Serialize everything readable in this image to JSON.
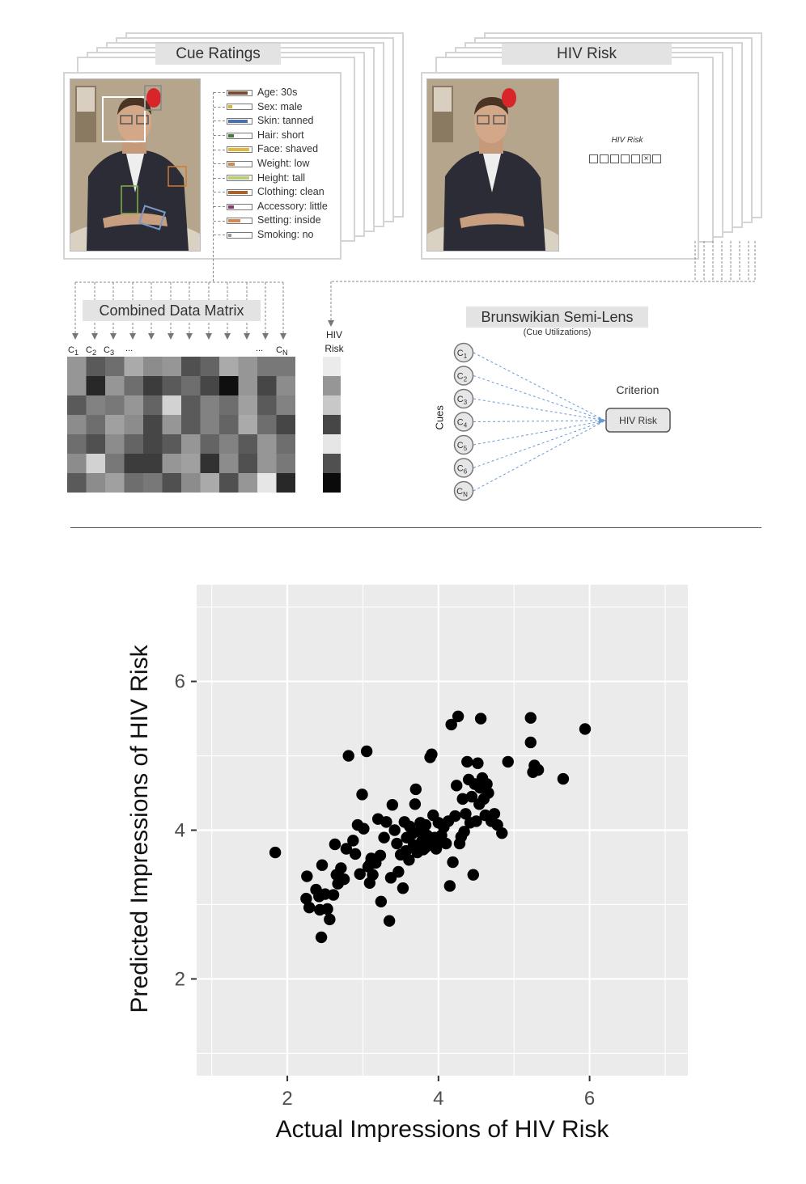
{
  "cue_ratings": {
    "title": "Cue Ratings",
    "cues": [
      {
        "label": "Age: 30s",
        "color": "#7a4a2a",
        "fill": 0.9
      },
      {
        "label": "Sex: male",
        "color": "#d8b23a",
        "fill": 0.2
      },
      {
        "label": "Skin: tanned",
        "color": "#4a6fae",
        "fill": 0.9
      },
      {
        "label": "Hair: short",
        "color": "#3f7a3a",
        "fill": 0.25
      },
      {
        "label": "Face: shaved",
        "color": "#e0b83a",
        "fill": 0.95
      },
      {
        "label": "Weight: low",
        "color": "#d48a4a",
        "fill": 0.3
      },
      {
        "label": "Height: tall",
        "color": "#b8cc7a",
        "fill": 0.95
      },
      {
        "label": "Clothing: clean",
        "color": "#a8622a",
        "fill": 0.9
      },
      {
        "label": "Accessory: little",
        "color": "#8a3a6a",
        "fill": 0.25
      },
      {
        "label": "Setting: inside",
        "color": "#d8884a",
        "fill": 0.55
      },
      {
        "label": "Smoking: no",
        "color": "#999999",
        "fill": 0.15
      }
    ]
  },
  "hiv_card": {
    "title": "HIV Risk",
    "scale_label": "HIV Risk",
    "scale_boxes": 7,
    "selected_box": 6
  },
  "matrix": {
    "title": "Combined Data Matrix",
    "col_labels": [
      {
        "base": "C",
        "sub": "1"
      },
      {
        "base": "C",
        "sub": "2"
      },
      {
        "base": "C",
        "sub": "3"
      },
      {
        "base": "...",
        "sub": ""
      },
      {
        "base": "...",
        "sub": ""
      },
      {
        "base": "C",
        "sub": "N"
      }
    ],
    "risk_label_line1": "HIV",
    "risk_label_line2": "Risk",
    "cells": [
      [
        150,
        90,
        110,
        170,
        140,
        150,
        80,
        100,
        170,
        150,
        120,
        120
      ],
      [
        150,
        40,
        150,
        110,
        60,
        90,
        110,
        70,
        15,
        150,
        70,
        140
      ],
      [
        90,
        130,
        120,
        150,
        100,
        210,
        90,
        130,
        110,
        160,
        90,
        130
      ],
      [
        140,
        110,
        160,
        140,
        70,
        150,
        90,
        130,
        100,
        170,
        110,
        70
      ],
      [
        110,
        80,
        140,
        100,
        70,
        90,
        150,
        100,
        130,
        90,
        150,
        110
      ],
      [
        140,
        210,
        120,
        60,
        60,
        150,
        160,
        50,
        140,
        80,
        150,
        120
      ],
      [
        90,
        140,
        160,
        110,
        120,
        80,
        140,
        170,
        80,
        150,
        230,
        40
      ]
    ],
    "risk_cells": [
      235,
      150,
      200,
      70,
      230,
      80,
      10
    ]
  },
  "lens": {
    "title": "Brunswikian Semi-Lens",
    "subtitle": "(Cue Utilizations)",
    "cue_axis_label": "Cues",
    "criterion_label": "Criterion",
    "criterion_box": "HIV Risk",
    "cues": [
      {
        "base": "C",
        "sub": "1"
      },
      {
        "base": "C",
        "sub": "2"
      },
      {
        "base": "C",
        "sub": "3"
      },
      {
        "base": "C",
        "sub": "4"
      },
      {
        "base": "C",
        "sub": "5"
      },
      {
        "base": "C",
        "sub": "6"
      },
      {
        "base": "C",
        "sub": "N"
      }
    ]
  },
  "chart_data": {
    "type": "scatter",
    "title": "",
    "xlabel": "Actual Impressions of HIV Risk",
    "ylabel": "Predicted Impressions of HIV Risk",
    "xlim": [
      0.8,
      7.3
    ],
    "ylim": [
      0.7,
      7.3
    ],
    "xticks": [
      2,
      4,
      6
    ],
    "yticks": [
      2,
      4,
      6
    ],
    "grid": true,
    "points": [
      [
        1.84,
        3.7
      ],
      [
        2.25,
        3.08
      ],
      [
        2.26,
        3.38
      ],
      [
        2.29,
        2.96
      ],
      [
        2.38,
        3.2
      ],
      [
        2.42,
        3.11
      ],
      [
        2.43,
        2.93
      ],
      [
        2.45,
        2.56
      ],
      [
        2.46,
        3.53
      ],
      [
        2.5,
        3.14
      ],
      [
        2.53,
        2.94
      ],
      [
        2.56,
        2.8
      ],
      [
        2.61,
        3.13
      ],
      [
        2.63,
        3.81
      ],
      [
        2.65,
        3.4
      ],
      [
        2.67,
        3.28
      ],
      [
        2.71,
        3.49
      ],
      [
        2.75,
        3.34
      ],
      [
        2.78,
        3.75
      ],
      [
        2.81,
        5.0
      ],
      [
        2.87,
        3.86
      ],
      [
        2.9,
        3.68
      ],
      [
        2.93,
        4.07
      ],
      [
        2.96,
        3.41
      ],
      [
        2.99,
        4.48
      ],
      [
        3.01,
        4.02
      ],
      [
        3.05,
        5.06
      ],
      [
        3.07,
        3.51
      ],
      [
        3.09,
        3.29
      ],
      [
        3.11,
        3.62
      ],
      [
        3.13,
        3.4
      ],
      [
        3.17,
        3.56
      ],
      [
        3.2,
        4.15
      ],
      [
        3.23,
        3.66
      ],
      [
        3.24,
        3.04
      ],
      [
        3.28,
        3.9
      ],
      [
        3.31,
        4.11
      ],
      [
        3.35,
        2.78
      ],
      [
        3.37,
        3.36
      ],
      [
        3.39,
        4.34
      ],
      [
        3.42,
        4.0
      ],
      [
        3.45,
        3.82
      ],
      [
        3.47,
        3.44
      ],
      [
        3.5,
        3.67
      ],
      [
        3.53,
        3.22
      ],
      [
        3.55,
        4.11
      ],
      [
        3.58,
        3.9
      ],
      [
        3.61,
        3.6
      ],
      [
        3.62,
        4.05
      ],
      [
        3.65,
        3.95
      ],
      [
        3.67,
        3.8
      ],
      [
        3.69,
        4.35
      ],
      [
        3.7,
        4.55
      ],
      [
        3.72,
        3.7
      ],
      [
        3.74,
        3.98
      ],
      [
        3.76,
        4.1
      ],
      [
        3.78,
        3.85
      ],
      [
        3.8,
        3.74
      ],
      [
        3.83,
        4.07
      ],
      [
        3.85,
        3.93
      ],
      [
        3.87,
        3.8
      ],
      [
        3.89,
        4.98
      ],
      [
        3.91,
        5.02
      ],
      [
        3.93,
        4.2
      ],
      [
        3.95,
        3.9
      ],
      [
        3.97,
        3.75
      ],
      [
        4.0,
        4.1
      ],
      [
        4.02,
        3.85
      ],
      [
        4.04,
        3.93
      ],
      [
        4.07,
        4.04
      ],
      [
        4.1,
        3.82
      ],
      [
        4.13,
        4.12
      ],
      [
        4.15,
        3.25
      ],
      [
        4.17,
        5.42
      ],
      [
        4.19,
        3.57
      ],
      [
        4.22,
        4.19
      ],
      [
        4.24,
        4.6
      ],
      [
        4.26,
        5.53
      ],
      [
        4.28,
        3.82
      ],
      [
        4.3,
        3.91
      ],
      [
        4.32,
        4.42
      ],
      [
        4.34,
        3.98
      ],
      [
        4.36,
        4.22
      ],
      [
        4.38,
        4.92
      ],
      [
        4.4,
        4.68
      ],
      [
        4.42,
        4.1
      ],
      [
        4.44,
        4.45
      ],
      [
        4.46,
        3.4
      ],
      [
        4.48,
        4.62
      ],
      [
        4.5,
        4.12
      ],
      [
        4.52,
        4.9
      ],
      [
        4.54,
        4.35
      ],
      [
        4.55,
        4.57
      ],
      [
        4.56,
        5.5
      ],
      [
        4.58,
        4.7
      ],
      [
        4.6,
        4.42
      ],
      [
        4.62,
        4.2
      ],
      [
        4.64,
        4.62
      ],
      [
        4.66,
        4.5
      ],
      [
        4.7,
        4.12
      ],
      [
        4.74,
        4.22
      ],
      [
        4.78,
        4.07
      ],
      [
        4.84,
        3.96
      ],
      [
        4.92,
        4.92
      ],
      [
        5.22,
        5.51
      ],
      [
        5.22,
        5.18
      ],
      [
        5.25,
        4.78
      ],
      [
        5.27,
        4.87
      ],
      [
        5.32,
        4.81
      ],
      [
        5.65,
        4.69
      ],
      [
        5.94,
        5.36
      ],
      [
        3.82,
        3.76
      ],
      [
        3.57,
        3.72
      ],
      [
        3.1,
        3.55
      ]
    ]
  }
}
